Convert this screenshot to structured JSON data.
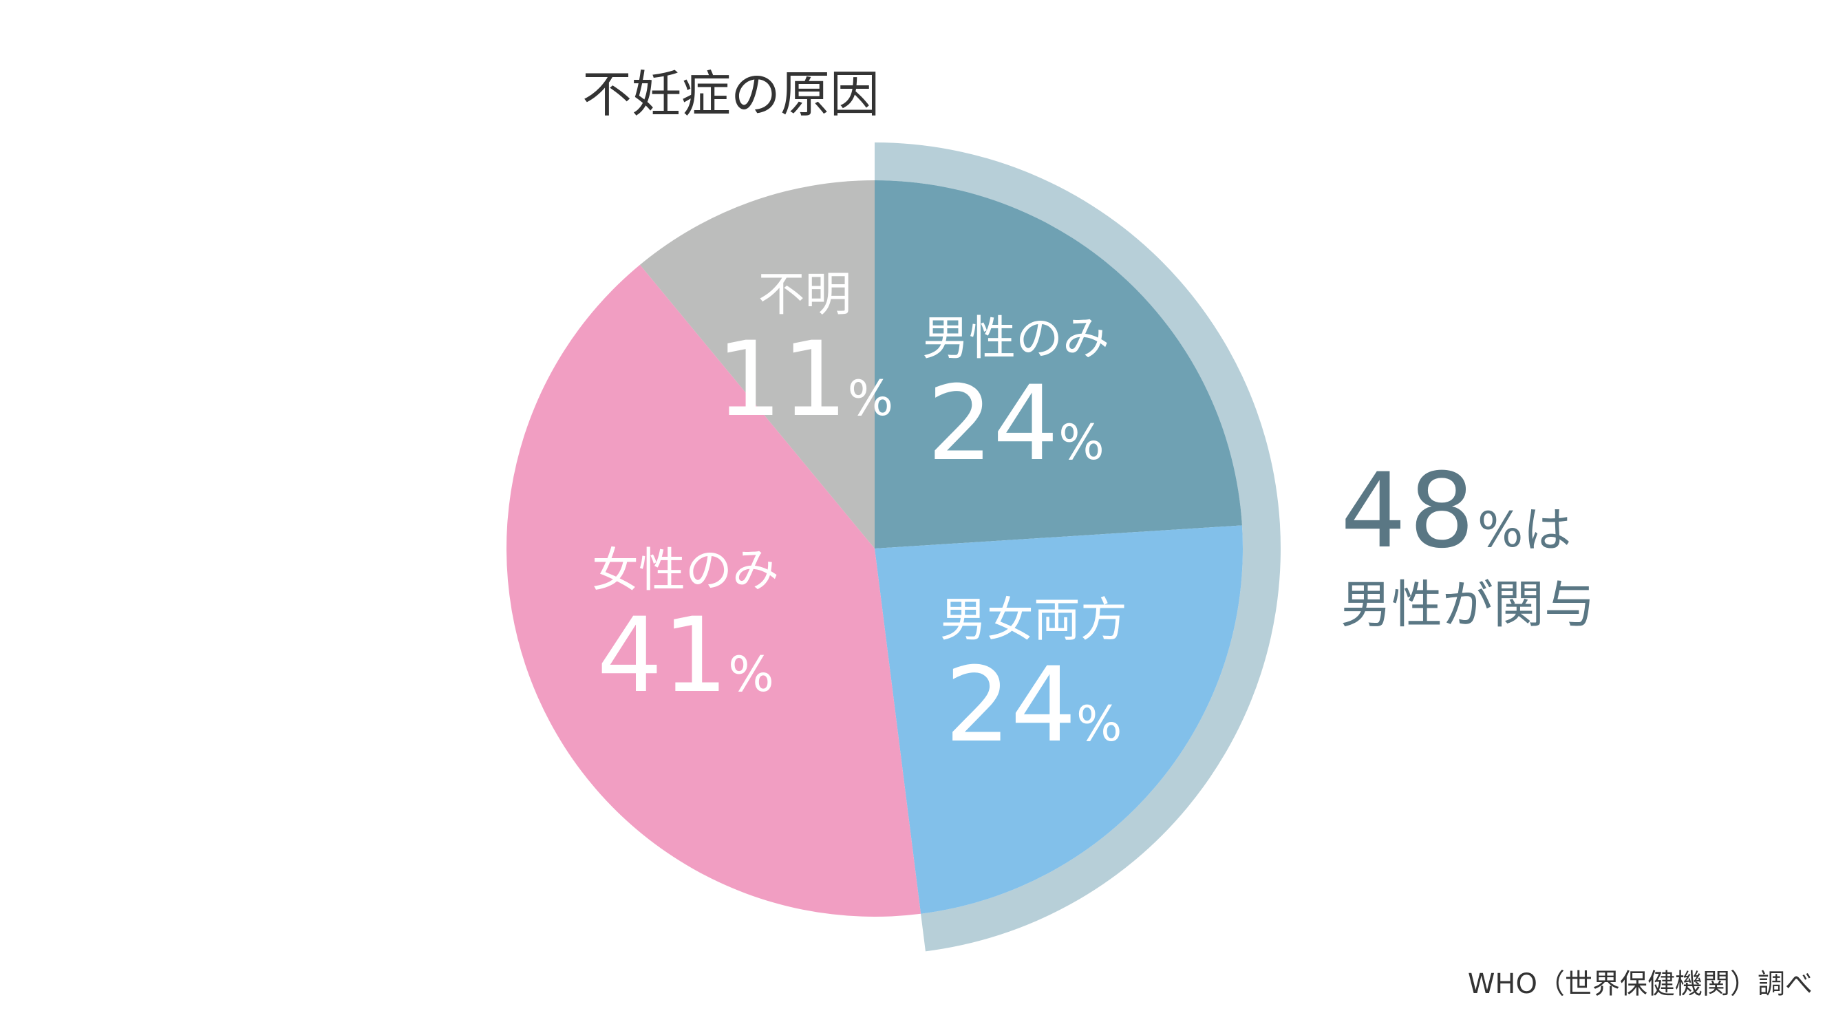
{
  "chart_data": {
    "type": "pie",
    "title": "不妊症の原因",
    "unit": "%",
    "slices": [
      {
        "label": "男性のみ",
        "value": 24,
        "color": "#6fa1b3"
      },
      {
        "label": "男女両方",
        "value": 24,
        "color": "#82c0ea"
      },
      {
        "label": "女性のみ",
        "value": 41,
        "color": "#f19ec2"
      },
      {
        "label": "不明",
        "value": 11,
        "color": "#bcbdbc"
      }
    ],
    "highlight": {
      "slices": [
        "男性のみ",
        "男女両方"
      ],
      "value": "48",
      "unit": "%",
      "suffix": "は",
      "line2": "男性が関与",
      "ring_color": "#b7cfd8"
    },
    "source": "WHO（世界保健機関）調べ"
  }
}
